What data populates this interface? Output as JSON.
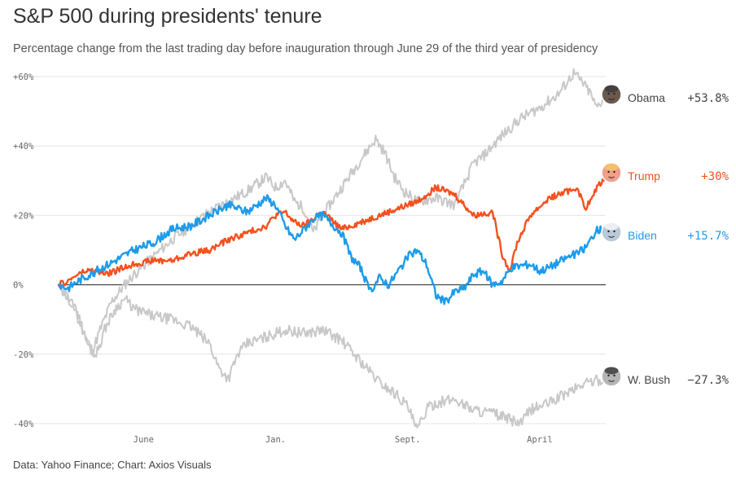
{
  "title": "S&P 500 during presidents' tenure",
  "subtitle": "Percentage change from the last trading day before inauguration through June 29 of the third year of presidency",
  "source": "Data: Yahoo Finance; Chart: Axios Visuals",
  "colors": {
    "Obama": "#c8c8c8",
    "W. Bush": "#c8c8c8",
    "Trump": "#f4511e",
    "Biden": "#1e9be9",
    "grid": "#e4e4e4",
    "zero": "#222222"
  },
  "chart_data": {
    "type": "line",
    "title": "S&P 500 during presidents' tenure",
    "xlabel": "",
    "ylabel": "",
    "ylim": [
      -40,
      60
    ],
    "yticks": [
      60,
      40,
      20,
      0,
      -20,
      -40
    ],
    "ytick_labels": [
      "+60%",
      "+40%",
      "+20%",
      "0%",
      "-20%",
      "-40%"
    ],
    "xlim": [
      0,
      29
    ],
    "x_unit": "months after inauguration",
    "xticks": [
      4.5,
      11.5,
      18.5,
      25.5
    ],
    "xtick_labels": [
      "June",
      "Jan.",
      "Sept.",
      "April"
    ],
    "grid": true,
    "legend": "end-of-line labels",
    "series": [
      {
        "name": "Obama",
        "end_label": "+53.8%",
        "icon": "obama-face-icon",
        "points": [
          [
            0,
            0
          ],
          [
            0.5,
            -4
          ],
          [
            1,
            -8
          ],
          [
            1.5,
            -16
          ],
          [
            1.8,
            -19
          ],
          [
            2.2,
            -13
          ],
          [
            2.8,
            -5
          ],
          [
            3.5,
            0
          ],
          [
            4,
            3
          ],
          [
            5,
            8
          ],
          [
            6,
            13
          ],
          [
            7,
            17
          ],
          [
            8,
            21
          ],
          [
            9,
            24
          ],
          [
            10,
            27
          ],
          [
            11,
            31
          ],
          [
            11.5,
            28
          ],
          [
            12,
            30
          ],
          [
            12.5,
            24
          ],
          [
            13,
            22
          ],
          [
            13.5,
            15
          ],
          [
            14,
            20
          ],
          [
            15,
            28
          ],
          [
            16,
            36
          ],
          [
            16.8,
            42
          ],
          [
            17.3,
            38
          ],
          [
            17.8,
            31
          ],
          [
            18.3,
            27
          ],
          [
            19,
            24
          ],
          [
            20,
            25
          ],
          [
            21,
            23
          ],
          [
            22,
            35
          ],
          [
            22.5,
            37
          ],
          [
            23.5,
            43
          ],
          [
            24.5,
            48
          ],
          [
            25.5,
            51
          ],
          [
            26.5,
            55
          ],
          [
            27.3,
            61
          ],
          [
            27.8,
            58
          ],
          [
            28.2,
            55
          ],
          [
            28.5,
            51
          ],
          [
            28.9,
            53.8
          ]
        ]
      },
      {
        "name": "W. Bush",
        "end_label": "−27.3%",
        "icon": "wbush-face-icon",
        "points": [
          [
            0,
            0
          ],
          [
            0.4,
            -3
          ],
          [
            0.8,
            -6
          ],
          [
            1.2,
            -12
          ],
          [
            1.6,
            -18
          ],
          [
            2,
            -20
          ],
          [
            2.5,
            -12
          ],
          [
            3,
            -7
          ],
          [
            3.5,
            -4
          ],
          [
            4,
            -7
          ],
          [
            5,
            -9
          ],
          [
            6,
            -10
          ],
          [
            7,
            -12
          ],
          [
            8,
            -17
          ],
          [
            8.5,
            -24
          ],
          [
            9,
            -27
          ],
          [
            9.5,
            -20
          ],
          [
            10,
            -17
          ],
          [
            11,
            -15
          ],
          [
            12,
            -13
          ],
          [
            13,
            -14
          ],
          [
            14,
            -13
          ],
          [
            15,
            -16
          ],
          [
            16,
            -22
          ],
          [
            17,
            -28
          ],
          [
            18,
            -32
          ],
          [
            18.5,
            -35
          ],
          [
            19,
            -42
          ],
          [
            19.5,
            -36
          ],
          [
            20,
            -34
          ],
          [
            21,
            -33
          ],
          [
            22,
            -36
          ],
          [
            23,
            -37
          ],
          [
            24,
            -39
          ],
          [
            24.5,
            -40
          ],
          [
            25,
            -36
          ],
          [
            26,
            -34
          ],
          [
            27,
            -31
          ],
          [
            28,
            -28
          ],
          [
            28.9,
            -27.3
          ]
        ]
      },
      {
        "name": "Trump",
        "end_label": "+30%",
        "icon": "trump-face-icon",
        "points": [
          [
            0,
            0
          ],
          [
            0.5,
            1
          ],
          [
            1,
            3
          ],
          [
            1.5,
            4
          ],
          [
            2,
            4
          ],
          [
            2.5,
            3
          ],
          [
            3,
            4
          ],
          [
            3.5,
            5
          ],
          [
            4,
            6
          ],
          [
            5,
            7
          ],
          [
            6,
            7
          ],
          [
            7,
            9
          ],
          [
            8,
            10
          ],
          [
            9,
            13
          ],
          [
            10,
            15
          ],
          [
            11,
            17
          ],
          [
            11.5,
            20
          ],
          [
            12,
            21
          ],
          [
            12.5,
            18
          ],
          [
            13,
            17
          ],
          [
            13.5,
            19
          ],
          [
            14,
            21
          ],
          [
            15,
            16
          ],
          [
            16,
            18
          ],
          [
            17,
            20
          ],
          [
            18,
            22
          ],
          [
            19,
            24
          ],
          [
            20,
            28
          ],
          [
            21,
            26
          ],
          [
            22,
            20
          ],
          [
            23,
            21
          ],
          [
            23.5,
            9
          ],
          [
            23.9,
            4
          ],
          [
            24.3,
            12
          ],
          [
            25,
            20
          ],
          [
            26,
            25
          ],
          [
            27,
            27
          ],
          [
            27.5,
            28
          ],
          [
            27.9,
            22
          ],
          [
            28.3,
            25
          ],
          [
            28.6,
            29
          ],
          [
            28.9,
            30
          ]
        ]
      },
      {
        "name": "Biden",
        "end_label": "+15.7%",
        "icon": "biden-face-icon",
        "points": [
          [
            0,
            0
          ],
          [
            0.5,
            -1
          ],
          [
            1,
            1
          ],
          [
            2,
            4
          ],
          [
            3,
            7
          ],
          [
            4,
            10
          ],
          [
            5,
            12
          ],
          [
            5.5,
            14
          ],
          [
            6,
            16
          ],
          [
            7,
            17
          ],
          [
            8,
            20
          ],
          [
            9,
            23
          ],
          [
            9.5,
            22
          ],
          [
            10,
            21
          ],
          [
            11,
            25
          ],
          [
            11.5,
            23
          ],
          [
            12,
            17
          ],
          [
            12.5,
            13
          ],
          [
            13,
            16
          ],
          [
            13.5,
            19
          ],
          [
            14,
            20
          ],
          [
            15,
            15
          ],
          [
            15.5,
            8
          ],
          [
            16,
            5
          ],
          [
            16.5,
            -2
          ],
          [
            17,
            2
          ],
          [
            17.5,
            0
          ],
          [
            18,
            4
          ],
          [
            18.5,
            8
          ],
          [
            19,
            10
          ],
          [
            19.5,
            6
          ],
          [
            20,
            -3
          ],
          [
            20.5,
            -5
          ],
          [
            21,
            -2
          ],
          [
            21.5,
            -1
          ],
          [
            22,
            3
          ],
          [
            22.5,
            4
          ],
          [
            23,
            0
          ],
          [
            23.5,
            1
          ],
          [
            24,
            5
          ],
          [
            25,
            6
          ],
          [
            25.5,
            4
          ],
          [
            26,
            5
          ],
          [
            27,
            8
          ],
          [
            27.5,
            9
          ],
          [
            28,
            11
          ],
          [
            28.3,
            14
          ],
          [
            28.6,
            16
          ],
          [
            28.9,
            15.7
          ]
        ]
      }
    ]
  }
}
